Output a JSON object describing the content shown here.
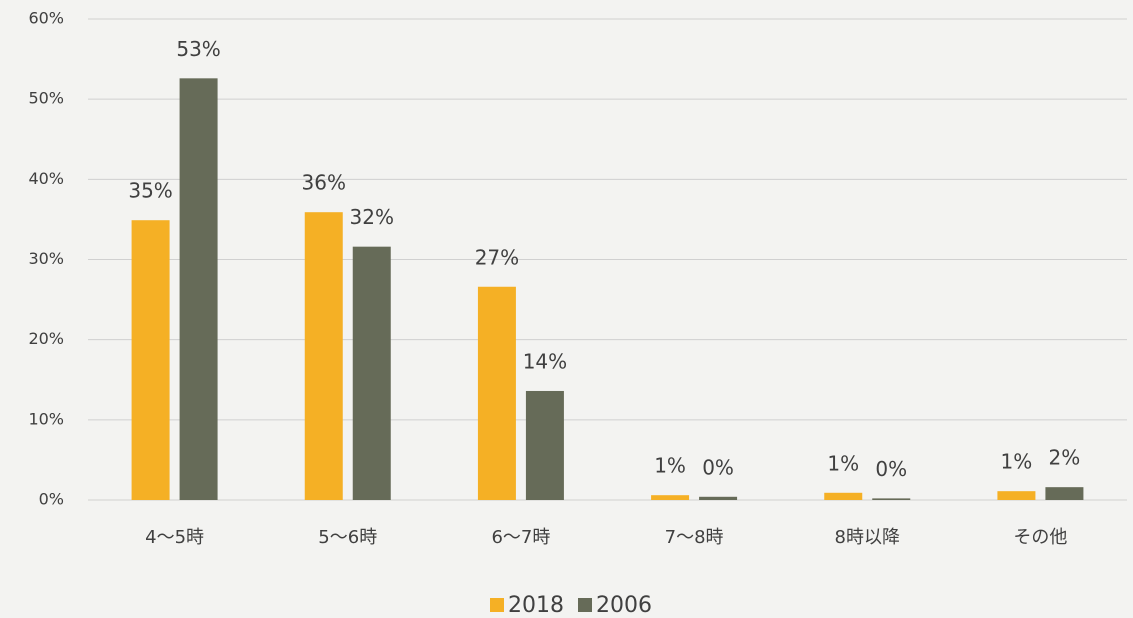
{
  "chart_data": {
    "type": "bar",
    "categories": [
      "4～5時",
      "5～6時",
      "6～7時",
      "7～8時",
      "8時以降",
      "その他"
    ],
    "series": [
      {
        "name": "2018",
        "color": "#f5b025",
        "values": [
          34.9,
          35.9,
          26.6,
          0.6,
          0.9,
          1.1
        ],
        "value_labels": [
          "35%",
          "36%",
          "27%",
          "1%",
          "1%",
          "1%"
        ]
      },
      {
        "name": "2006",
        "color": "#666b58",
        "values": [
          52.6,
          31.6,
          13.6,
          0.4,
          0.2,
          1.6
        ],
        "value_labels": [
          "53%",
          "32%",
          "14%",
          "0%",
          "0%",
          "2%"
        ]
      }
    ],
    "ylim": [
      0,
      60
    ],
    "yticks": [
      {
        "value": 0,
        "label": "0%"
      },
      {
        "value": 10,
        "label": "10%"
      },
      {
        "value": 20,
        "label": "20%"
      },
      {
        "value": 30,
        "label": "30%"
      },
      {
        "value": 40,
        "label": "40%"
      },
      {
        "value": 50,
        "label": "50%"
      },
      {
        "value": 60,
        "label": "60%"
      }
    ],
    "grid": true,
    "legend": "bottom"
  }
}
